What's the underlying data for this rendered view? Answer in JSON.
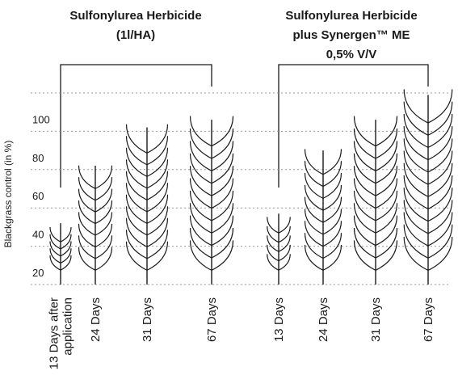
{
  "chart_data": {
    "type": "pictogram",
    "y_label": "Blackgrass control (in %)",
    "ylim": [
      20,
      120
    ],
    "yticks": [
      20,
      40,
      60,
      80,
      100
    ],
    "grid": true,
    "color": "#1a1a1a",
    "groups": [
      {
        "title": [
          "Sulfonylurea Herbicide",
          "(1l/HA)"
        ],
        "categories": [
          [
            "13 Days after",
            "application"
          ],
          [
            "24 Days"
          ],
          [
            "31 Days"
          ],
          [
            "67 Days"
          ]
        ],
        "values": [
          52,
          82,
          102,
          106
        ]
      },
      {
        "title": [
          "Sulfonylurea Herbicide",
          "plus Synergen™ ME",
          "0,5% V/V"
        ],
        "categories": [
          [
            "13 Days"
          ],
          [
            "24 Days"
          ],
          [
            "31 Days"
          ],
          [
            "67 Days"
          ]
        ],
        "values": [
          57,
          90,
          106,
          119
        ]
      }
    ]
  }
}
